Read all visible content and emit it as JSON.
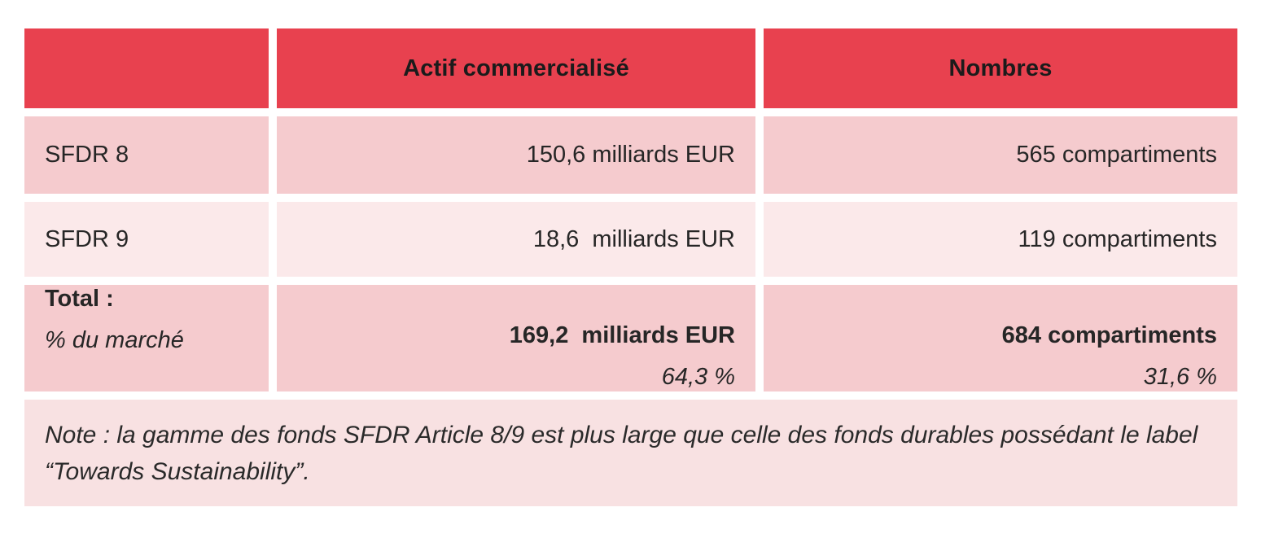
{
  "colors": {
    "header_bg": "#e8414f",
    "row_dark_bg": "#f5cbce",
    "row_light_bg": "#fbe9ea",
    "note_bg": "#f8e1e2",
    "text": "#262626"
  },
  "table": {
    "columns": [
      "",
      "Actif commercialisé",
      "Nombres"
    ],
    "rows": [
      {
        "label": "SFDR 8",
        "actif": "150,6 milliards EUR",
        "nombres": "565 compartiments"
      },
      {
        "label": "SFDR 9",
        "actif": "18,6  milliards EUR",
        "nombres": "119 compartiments"
      }
    ],
    "total_row": {
      "label_line1": "Total :",
      "label_line2": "% du marché",
      "actif_line1": "169,2  milliards EUR",
      "actif_line2": "64,3 %",
      "nombres_line1": "684 compartiments",
      "nombres_line2": "31,6 %"
    },
    "note": "Note : la gamme des fonds SFDR Article 8/9 est plus large que celle des fonds durables possédant le label “Towards Sustainability”."
  },
  "chart_data": {
    "type": "table",
    "title": "",
    "columns": [
      "",
      "Actif commercialisé",
      "Nombres"
    ],
    "rows": [
      {
        "segment": "SFDR 8",
        "actif_commercialise": "150,6 milliards EUR",
        "actif_milliards_eur": 150.6,
        "nombres": "565 compartiments",
        "nombres_count": 565
      },
      {
        "segment": "SFDR 9",
        "actif_commercialise": "18,6 milliards EUR",
        "actif_milliards_eur": 18.6,
        "nombres": "119 compartiments",
        "nombres_count": 119
      }
    ],
    "total": {
      "label": "Total :",
      "pct_label": "% du marché",
      "actif_milliards_eur": 169.2,
      "actif_pct_marche": 64.3,
      "nombres_count": 684,
      "nombres_pct_marche": 31.6
    },
    "note": "Note : la gamme des fonds SFDR Article 8/9 est plus large que celle des fonds durables possédant le label “Towards Sustainability”.",
    "layout": {
      "header_fill": "#e8414f",
      "body_fills": [
        "#f5cbce",
        "#fbe9ea",
        "#f5cbce",
        "#f8e1e2"
      ],
      "grid": "white-gaps"
    }
  }
}
